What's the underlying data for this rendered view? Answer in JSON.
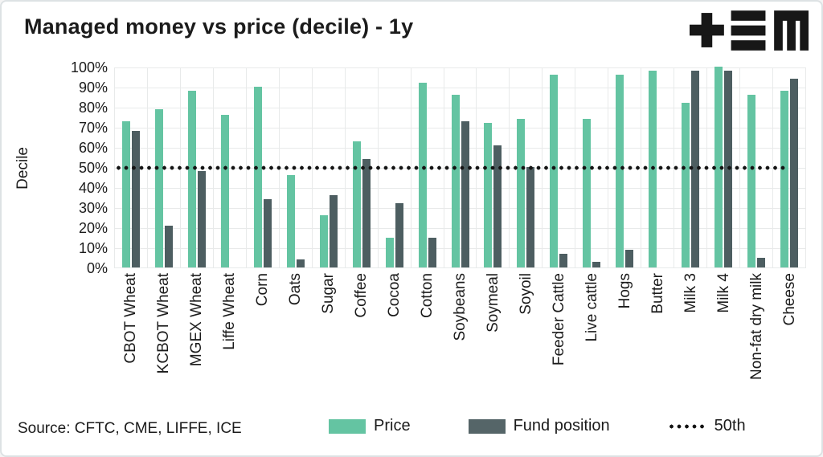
{
  "header": {
    "title": "Managed money vs price (decile) - 1y"
  },
  "chart_data": {
    "type": "bar",
    "title": "Managed money vs price (decile) - 1y",
    "xlabel": "",
    "ylabel": "Decile",
    "ylim": [
      0,
      100
    ],
    "y_ticks": [
      "100%",
      "90%",
      "80%",
      "70%",
      "60%",
      "50%",
      "40%",
      "30%",
      "20%",
      "10%",
      "0%"
    ],
    "grid": true,
    "legend_position": "bottom",
    "categories": [
      "CBOT Wheat",
      "KCBOT Wheat",
      "MGEX Wheat",
      "Liffe Wheat",
      "Corn",
      "Oats",
      "Sugar",
      "Coffee",
      "Cocoa",
      "Cotton",
      "Soybeans",
      "Soymeal",
      "Soyoil",
      "Feeder Cattle",
      "Live cattle",
      "Hogs",
      "Butter",
      "Milk 3",
      "Milk 4",
      "Non-fat dry milk",
      "Cheese"
    ],
    "series": [
      {
        "name": "Price",
        "key": "price",
        "color": "#64C4A2",
        "values": [
          73,
          79,
          88,
          76,
          90,
          46,
          26,
          63,
          15,
          92,
          86,
          72,
          74,
          96,
          74,
          96,
          98,
          82,
          100,
          86,
          88
        ]
      },
      {
        "name": "Fund position",
        "key": "fund",
        "color": "#4D5E61",
        "values": [
          68,
          21,
          48,
          null,
          34,
          4,
          36,
          54,
          32,
          15,
          73,
          61,
          50,
          7,
          3,
          9,
          null,
          98,
          98,
          5,
          94
        ]
      }
    ],
    "reference_line": {
      "label": "50th",
      "value": 50,
      "style": "dotted",
      "color": "#141414"
    }
  },
  "legend": {
    "price_label": "Price",
    "fund_label": "Fund position",
    "line_label": "50th"
  },
  "footer": {
    "source": "Source: CFTC, CME, LIFFE, ICE"
  },
  "colors": {
    "background": "#FFFFFF",
    "grid": "#E8EAEA",
    "text": "#1B1B1B",
    "logo": "#171717",
    "price_bar": "#64C4A2",
    "fund_bar": "#4D5E61",
    "reference_line": "#141414"
  }
}
